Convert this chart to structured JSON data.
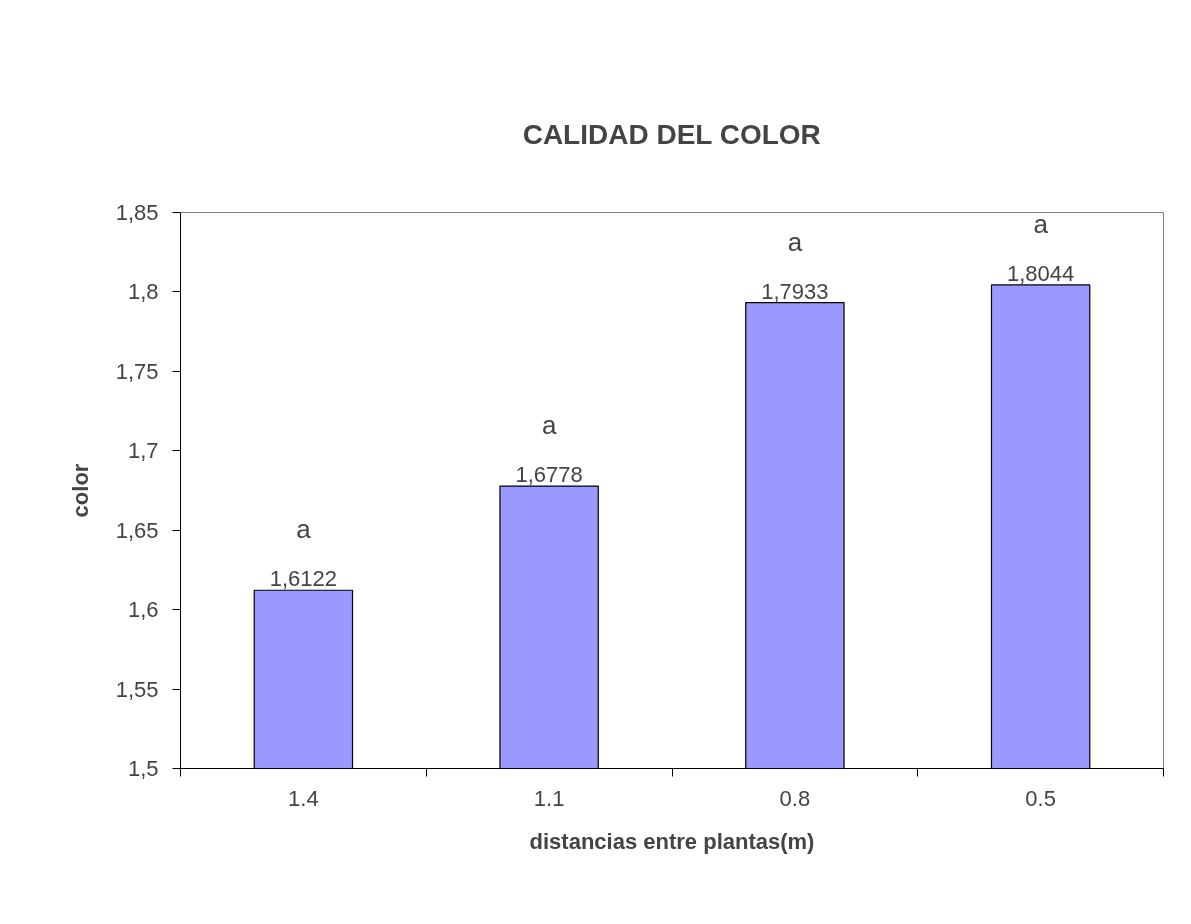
{
  "chart_data": {
    "type": "bar",
    "title": "CALIDAD DEL COLOR",
    "xlabel": "distancias entre plantas(m)",
    "ylabel": "color",
    "categories": [
      "1.4",
      "1.1",
      "0.8",
      "0.5"
    ],
    "values": [
      1.6122,
      1.6778,
      1.7933,
      1.8044
    ],
    "value_labels": [
      "1,6122",
      "1,6778",
      "1,7933",
      "1,8044"
    ],
    "color": "#9999ff",
    "ylim": [
      1.5,
      1.85
    ],
    "yticks": [
      {
        "value": 1.5,
        "label": "1,5"
      },
      {
        "value": 1.55,
        "label": "1,55"
      },
      {
        "value": 1.6,
        "label": "1,6"
      },
      {
        "value": 1.65,
        "label": "1,65"
      },
      {
        "value": 1.7,
        "label": "1,7"
      },
      {
        "value": 1.75,
        "label": "1,75"
      },
      {
        "value": 1.8,
        "label": "1,8"
      },
      {
        "value": 1.85,
        "label": "1,85"
      }
    ],
    "annotations": [
      "a",
      "a",
      "a",
      "a"
    ],
    "grid": false
  }
}
